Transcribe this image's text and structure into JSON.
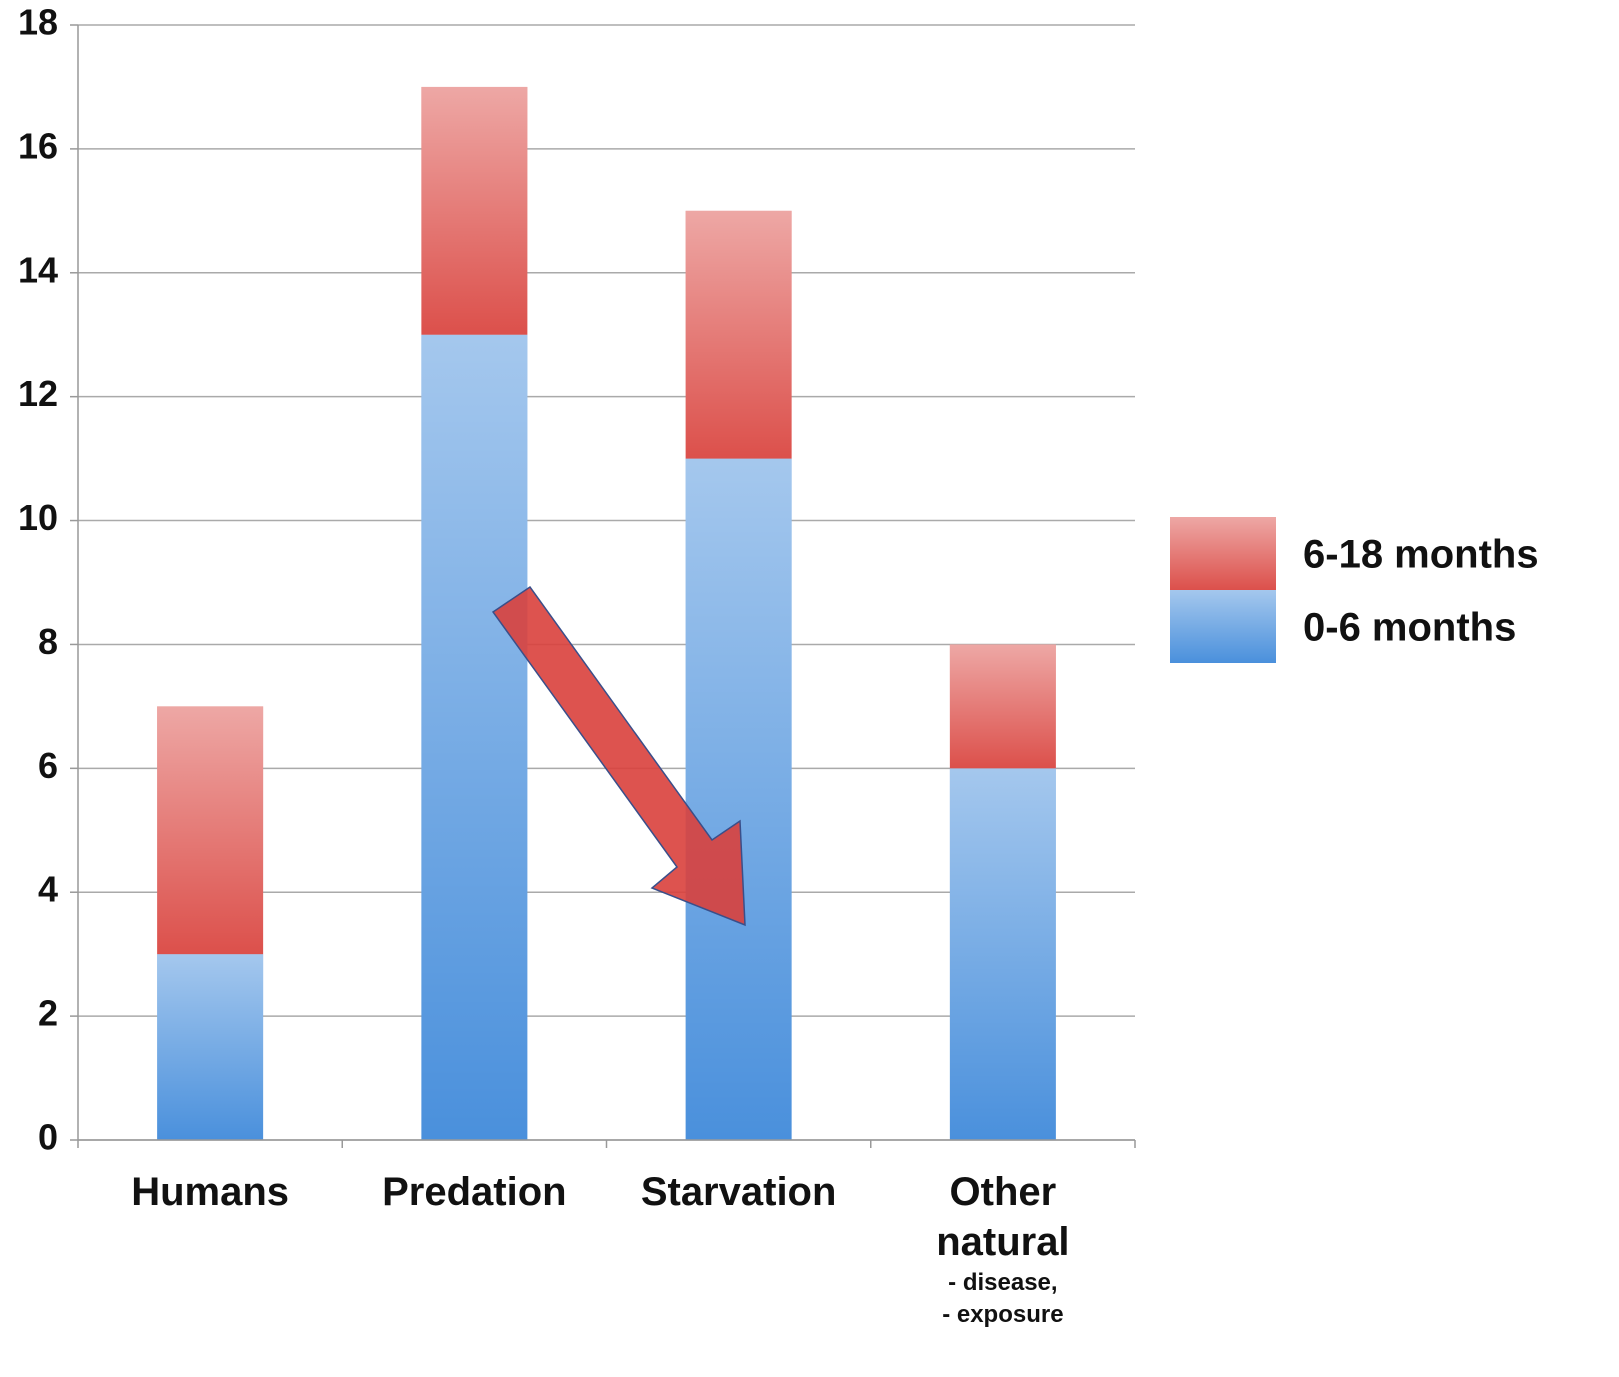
{
  "chart_data": {
    "type": "stacked_bar",
    "categories": [
      "Humans",
      "Predation",
      "Starvation",
      "Other natural"
    ],
    "annotations": [
      "- disease,",
      "- exposure"
    ],
    "series": [
      {
        "name": "0-6 months",
        "color": "#4a90dc",
        "values": [
          3,
          13,
          11,
          6
        ]
      },
      {
        "name": "6-18 months",
        "color": "#dc504b",
        "values": [
          4,
          4,
          4,
          2
        ]
      }
    ],
    "ylim": [
      0,
      18
    ],
    "yticks": [
      0,
      2,
      4,
      6,
      8,
      10,
      12,
      14,
      16,
      18
    ],
    "grid": true,
    "legend": "right"
  }
}
